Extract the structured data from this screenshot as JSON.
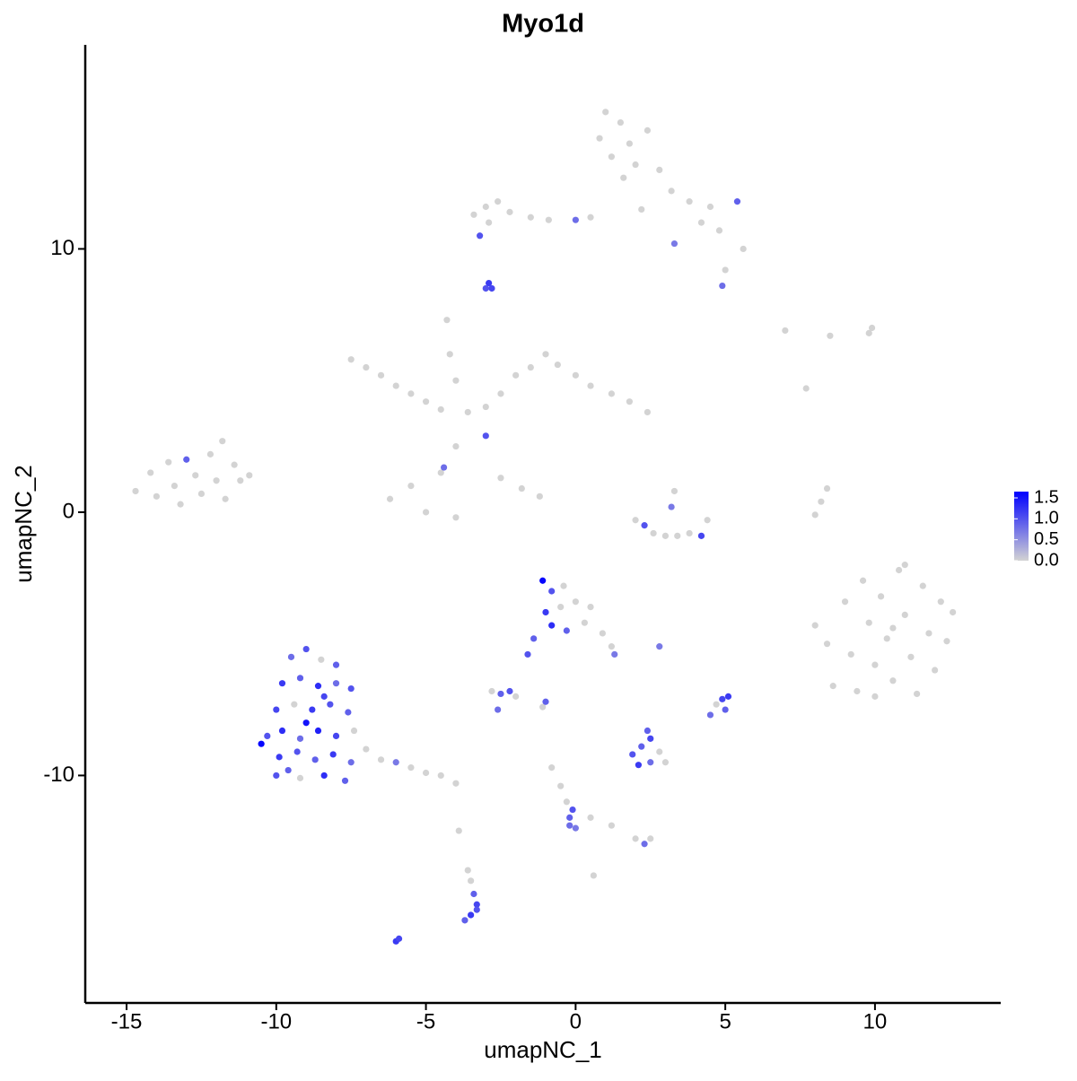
{
  "chart_data": {
    "type": "scatter",
    "title": "Myo1d",
    "x_label": "umapNC_1",
    "y_label": "umapNC_2",
    "xlim": [
      -16.38,
      14.2
    ],
    "ylim": [
      -18.64,
      17.75
    ],
    "xticks": [
      -15,
      -10,
      -5,
      0,
      5,
      10
    ],
    "yticks": [
      -10,
      0,
      10
    ],
    "x": [
      1.0,
      1.5,
      0.8,
      1.8,
      2.4,
      1.2,
      2.0,
      2.8,
      1.6,
      3.2,
      3.8,
      4.5,
      5.4,
      4.2,
      4.8,
      5.6,
      5.0,
      4.9,
      3.3,
      2.2,
      -3.4,
      -3.0,
      -2.6,
      -2.2,
      -1.5,
      -0.9,
      0.0,
      0.5,
      -2.9,
      -3.2,
      -2.9,
      -2.8,
      -3.0,
      -7.5,
      -7.0,
      -6.5,
      -6.0,
      -5.5,
      -5.0,
      -4.5,
      -4.3,
      -4.2,
      -4.0,
      -3.6,
      -3.0,
      -2.5,
      -2.0,
      -1.5,
      -1.0,
      -0.6,
      0.0,
      0.5,
      1.2,
      1.8,
      2.4,
      -3.0,
      -4.0,
      -4.5,
      -5.5,
      -6.2,
      -5.0,
      -4.0,
      -4.4,
      -2.5,
      -1.8,
      -1.2,
      -14.7,
      -14.2,
      -14.0,
      -13.6,
      -13.4,
      -13.2,
      -13.0,
      -12.7,
      -12.5,
      -12.2,
      -12.0,
      -11.7,
      -11.4,
      -11.2,
      -10.9,
      -11.8,
      2.0,
      2.3,
      2.6,
      3.0,
      3.4,
      3.8,
      4.2,
      4.4,
      3.3,
      3.2,
      8.0,
      8.2,
      8.4,
      8.0,
      8.4,
      8.6,
      9.0,
      9.2,
      9.4,
      9.6,
      9.8,
      10.0,
      10.2,
      10.4,
      10.6,
      10.8,
      11.0,
      11.2,
      11.4,
      11.6,
      11.8,
      12.0,
      12.2,
      12.4,
      11.0,
      10.0,
      12.6,
      10.6,
      -9.5,
      -9.0,
      -8.5,
      -8.0,
      -9.8,
      -9.2,
      -8.6,
      -8.0,
      -7.5,
      -10.0,
      -9.4,
      -8.8,
      -8.2,
      -7.6,
      -10.3,
      -9.8,
      -9.2,
      -8.6,
      -8.0,
      -7.4,
      -10.5,
      -9.9,
      -9.3,
      -8.7,
      -8.1,
      -7.5,
      -10.0,
      -9.2,
      -8.4,
      -7.7,
      -7.0,
      -6.5,
      -6.0,
      -5.5,
      -5.0,
      -4.5,
      -4.0,
      -9.0,
      -8.4,
      -9.6,
      -1.1,
      -0.8,
      -0.4,
      -1.0,
      -0.5,
      0.0,
      0.5,
      -0.8,
      -0.3,
      0.3,
      0.9,
      1.2,
      1.3,
      -1.4,
      -1.6,
      -2.8,
      -2.5,
      -2.2,
      -2.0,
      -2.6,
      1.9,
      2.2,
      2.5,
      2.8,
      2.1,
      2.5,
      3.0,
      2.4,
      4.9,
      5.1,
      5.0,
      4.7,
      4.5,
      2.8,
      -1.1,
      -1.0,
      -0.8,
      -0.5,
      -0.3,
      -0.2,
      -0.1,
      -0.2,
      0.5,
      1.2,
      0.0,
      2.0,
      2.3,
      2.5,
      -3.6,
      -3.5,
      -3.4,
      -3.3,
      -3.5,
      -3.7,
      -3.3,
      -3.9,
      -6.0,
      -5.9,
      0.6,
      7.0,
      8.5,
      9.8,
      9.9,
      7.7
    ],
    "y": [
      15.2,
      14.8,
      14.2,
      14.0,
      14.5,
      13.5,
      13.2,
      13.0,
      12.7,
      12.2,
      11.8,
      11.6,
      11.8,
      11.0,
      10.7,
      10.0,
      9.2,
      8.6,
      10.2,
      11.5,
      11.3,
      11.6,
      11.8,
      11.4,
      11.2,
      11.1,
      11.1,
      11.2,
      11.0,
      10.5,
      8.7,
      8.5,
      8.5,
      5.8,
      5.5,
      5.2,
      4.8,
      4.5,
      4.2,
      3.9,
      7.3,
      6.0,
      5.0,
      3.8,
      4.0,
      4.5,
      5.2,
      5.5,
      6.0,
      5.6,
      5.2,
      4.8,
      4.5,
      4.2,
      3.8,
      2.9,
      2.5,
      1.5,
      1.0,
      0.5,
      0.0,
      -0.2,
      1.7,
      1.3,
      0.9,
      0.6,
      0.8,
      1.5,
      0.6,
      1.9,
      1.0,
      0.3,
      2.0,
      1.4,
      0.7,
      2.2,
      1.2,
      0.5,
      1.8,
      1.2,
      1.4,
      2.7,
      -0.3,
      -0.5,
      -0.8,
      -0.9,
      -0.9,
      -0.8,
      -0.9,
      -0.3,
      0.8,
      0.2,
      -0.1,
      0.4,
      0.9,
      -4.3,
      -5.0,
      -6.6,
      -3.4,
      -5.4,
      -6.8,
      -2.6,
      -4.2,
      -5.8,
      -3.2,
      -4.8,
      -6.4,
      -2.2,
      -3.9,
      -5.5,
      -6.9,
      -2.8,
      -4.6,
      -6.0,
      -3.4,
      -4.9,
      -2.0,
      -7.0,
      -3.8,
      -4.4,
      -5.5,
      -5.2,
      -5.6,
      -5.8,
      -6.5,
      -6.3,
      -6.6,
      -6.5,
      -6.7,
      -7.5,
      -7.3,
      -7.5,
      -7.3,
      -7.6,
      -8.5,
      -8.3,
      -8.6,
      -8.3,
      -8.5,
      -8.3,
      -8.8,
      -9.3,
      -9.1,
      -9.4,
      -9.2,
      -9.5,
      -10.0,
      -10.1,
      -10.0,
      -10.2,
      -9.0,
      -9.4,
      -9.5,
      -9.7,
      -9.9,
      -10.0,
      -10.3,
      -8.0,
      -7.0,
      -9.8,
      -2.6,
      -3.0,
      -2.8,
      -3.8,
      -3.6,
      -3.4,
      -3.6,
      -4.3,
      -4.5,
      -4.2,
      -4.6,
      -5.1,
      -5.4,
      -4.8,
      -5.4,
      -6.8,
      -6.9,
      -6.8,
      -7.0,
      -7.5,
      -9.2,
      -8.9,
      -8.6,
      -9.1,
      -9.6,
      -9.5,
      -9.5,
      -8.3,
      -7.1,
      -7.0,
      -7.5,
      -7.3,
      -7.7,
      -5.1,
      -7.4,
      -7.2,
      -9.7,
      -10.4,
      -11.0,
      -11.6,
      -11.3,
      -11.9,
      -11.6,
      -11.9,
      -12.0,
      -12.4,
      -12.6,
      -12.4,
      -13.6,
      -14.0,
      -14.5,
      -14.9,
      -15.3,
      -15.5,
      -15.1,
      -12.1,
      -16.3,
      -16.2,
      -13.8,
      6.9,
      6.7,
      6.8,
      7.0,
      4.7
    ],
    "values": [
      0,
      0,
      0,
      0,
      0,
      0,
      0,
      0,
      0,
      0,
      0,
      0,
      0.9,
      0,
      0,
      0,
      0,
      0.8,
      0.7,
      0,
      0,
      0,
      0,
      0,
      0,
      0,
      0.8,
      0,
      0,
      1.0,
      1.2,
      1.1,
      1.0,
      0,
      0,
      0,
      0,
      0,
      0,
      0,
      0,
      0,
      0,
      0,
      0,
      0,
      0,
      0,
      0,
      0,
      0,
      0,
      0,
      0,
      0,
      1.0,
      0,
      0,
      0,
      0,
      0,
      0,
      0.8,
      0,
      0,
      0,
      0,
      0,
      0,
      0,
      0,
      0,
      0.9,
      0,
      0,
      0,
      0,
      0,
      0,
      0,
      0,
      0,
      0,
      1.0,
      0,
      0,
      0,
      0,
      1.1,
      0,
      0,
      0.7,
      0,
      0,
      0,
      0,
      0,
      0,
      0,
      0,
      0,
      0,
      0,
      0,
      0,
      0,
      0,
      0,
      0,
      0,
      0,
      0,
      0,
      0,
      0,
      0,
      0,
      0,
      0,
      0,
      0.8,
      1.0,
      0,
      0.9,
      1.2,
      0.9,
      1.3,
      0.8,
      1.0,
      1.1,
      0,
      1.2,
      1.0,
      0.9,
      1.0,
      1.3,
      0.8,
      1.4,
      1.1,
      0,
      1.6,
      1.2,
      1.0,
      0.9,
      1.2,
      0.8,
      1.0,
      0,
      1.3,
      0.9,
      0,
      0,
      0.7,
      0,
      0,
      0,
      0,
      1.5,
      1.1,
      0.9,
      1.6,
      1.0,
      0,
      1.2,
      0,
      0,
      0,
      1.3,
      0.9,
      0,
      0,
      0,
      0.7,
      0.9,
      1.0,
      0,
      0.9,
      1.0,
      0,
      0.8,
      1.0,
      0.9,
      1.1,
      0,
      1.2,
      0.8,
      0,
      0.9,
      1.1,
      1.2,
      0.9,
      0,
      0.8,
      0.7,
      0,
      0.9,
      0,
      0,
      0,
      0.9,
      1.0,
      0.8,
      0,
      0,
      0.7,
      0,
      0.8,
      0,
      0,
      0,
      0.9,
      1.1,
      1.2,
      0.9,
      1.0,
      0,
      1.2,
      1.1,
      0,
      0,
      0,
      0,
      0,
      0
    ],
    "color_low": "#d3d3d3",
    "color_high": "#0000ff",
    "colorbar_lim": [
      0,
      1.65
    ],
    "colorbar_ticks": [
      {
        "value": 0,
        "label": "0.0"
      },
      {
        "value": 0.5,
        "label": "0.5"
      },
      {
        "value": 1,
        "label": "1.0"
      },
      {
        "value": 1.5,
        "label": "1.5"
      }
    ]
  }
}
